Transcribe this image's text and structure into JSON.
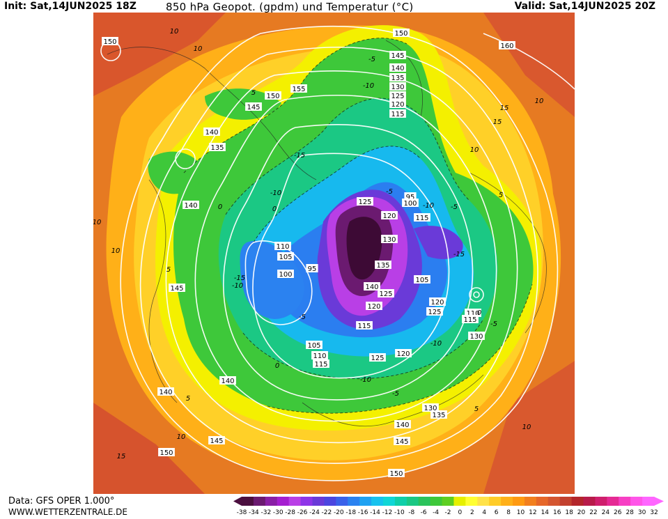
{
  "header": {
    "init": "Init: Sat,14JUN2025 18Z",
    "title": "850 hPa Geopot. (gpdm) und Temperatur (°C)",
    "valid": "Valid: Sat,14JUN2025 20Z"
  },
  "footer": {
    "source": "Data: GFS OPER 1.000°",
    "website": "WWW.WETTERZENTRALE.DE"
  },
  "legend": {
    "ticks": [
      "-38",
      "-34",
      "-32",
      "-30",
      "-28",
      "-26",
      "-24",
      "-22",
      "-20",
      "-18",
      "-16",
      "-14",
      "-12",
      "-10",
      "-8",
      "-6",
      "-4",
      "-2",
      "0",
      "2",
      "4",
      "6",
      "8",
      "10",
      "12",
      "14",
      "16",
      "18",
      "20",
      "22",
      "24",
      "26",
      "28",
      "30",
      "32"
    ],
    "colors": [
      "#4b0f3f",
      "#6b1a70",
      "#8a1fa6",
      "#a51fd0",
      "#b93fe6",
      "#8e35e8",
      "#6a3ad8",
      "#4c46e0",
      "#3a62ea",
      "#2b82f0",
      "#1fa2f2",
      "#17c2ee",
      "#10d6d6",
      "#10cfa9",
      "#1bc884",
      "#2bc35c",
      "#3ec83a",
      "#5ecf22",
      "#e6f000",
      "#ffff33",
      "#ffe24a",
      "#ffcc28",
      "#ffb019",
      "#ff9a12",
      "#f27f1e",
      "#e6672a",
      "#d45631",
      "#c2412f",
      "#b3262b",
      "#b81b4a",
      "#cf1f6d",
      "#e52a94",
      "#f73fc4",
      "#ff55e8",
      "#ff66ff"
    ]
  },
  "map": {
    "geopotential_labels": [
      {
        "text": "150"
      },
      {
        "text": "150"
      },
      {
        "text": "145"
      },
      {
        "text": "140"
      },
      {
        "text": "135"
      },
      {
        "text": "130"
      },
      {
        "text": "125"
      },
      {
        "text": "120"
      },
      {
        "text": "115"
      },
      {
        "text": "160"
      },
      {
        "text": "150"
      },
      {
        "text": "155"
      },
      {
        "text": "145"
      },
      {
        "text": "140"
      },
      {
        "text": "135"
      },
      {
        "text": "140"
      },
      {
        "text": "145"
      },
      {
        "text": "125"
      },
      {
        "text": "120"
      },
      {
        "text": "130"
      },
      {
        "text": "135"
      },
      {
        "text": "140"
      },
      {
        "text": "125"
      },
      {
        "text": "120"
      },
      {
        "text": "115"
      },
      {
        "text": "95"
      },
      {
        "text": "100"
      },
      {
        "text": "115"
      },
      {
        "text": "110"
      },
      {
        "text": "105"
      },
      {
        "text": "95"
      },
      {
        "text": "100"
      },
      {
        "text": "105"
      },
      {
        "text": "120"
      },
      {
        "text": "125"
      },
      {
        "text": "110"
      },
      {
        "text": "115"
      },
      {
        "text": "130"
      },
      {
        "text": "105"
      },
      {
        "text": "110"
      },
      {
        "text": "115"
      },
      {
        "text": "125"
      },
      {
        "text": "120"
      },
      {
        "text": "140"
      },
      {
        "text": "140"
      },
      {
        "text": "145"
      },
      {
        "text": "150"
      },
      {
        "text": "130"
      },
      {
        "text": "135"
      },
      {
        "text": "140"
      },
      {
        "text": "145"
      },
      {
        "text": "150"
      }
    ],
    "temperature_labels": [
      "10",
      "15",
      "10",
      "5",
      "15",
      "10",
      "10",
      "5",
      "0",
      "-5",
      "-10",
      "-15",
      "-10",
      "-5",
      "0",
      "10",
      "-15",
      "-10",
      "-5",
      "0",
      "5",
      "10",
      "-5",
      "-10",
      "-15",
      "-10",
      "15",
      "10",
      "5",
      "-5",
      "-10",
      "-5",
      "0",
      "5",
      "10",
      "15"
    ]
  }
}
